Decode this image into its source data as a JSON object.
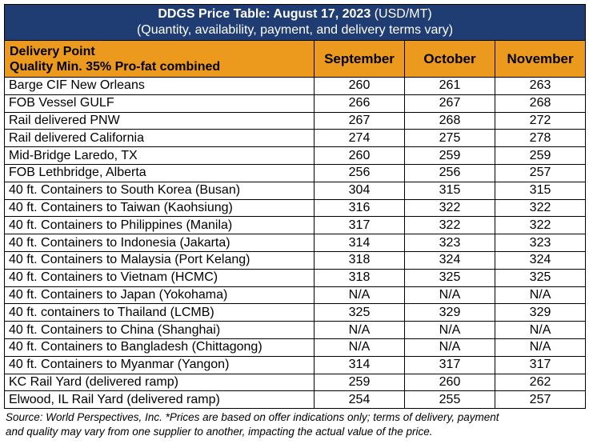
{
  "title": {
    "bold": "DDGS Price Table: August 17, 2023",
    "unit": "(USD/MT)",
    "subtitle": "(Quantity, availability, payment, and delivery terms vary)"
  },
  "header": {
    "point_line1": "Delivery Point",
    "point_line2": "Quality Min. 35% Pro-fat combined",
    "months": [
      "September",
      "October",
      "November"
    ]
  },
  "rows": [
    {
      "point": "Barge CIF New Orleans",
      "sep": "260",
      "oct": "261",
      "nov": "263"
    },
    {
      "point": "FOB Vessel GULF",
      "sep": "266",
      "oct": "267",
      "nov": "268"
    },
    {
      "point": "Rail delivered PNW",
      "sep": "267",
      "oct": "268",
      "nov": "272"
    },
    {
      "point": "Rail delivered California",
      "sep": "274",
      "oct": "275",
      "nov": "278"
    },
    {
      "point": "Mid-Bridge Laredo, TX",
      "sep": "260",
      "oct": "259",
      "nov": "259"
    },
    {
      "point": "FOB Lethbridge, Alberta",
      "sep": "256",
      "oct": "256",
      "nov": "257"
    },
    {
      "point": "40 ft. Containers to South Korea (Busan)",
      "sep": "304",
      "oct": "315",
      "nov": "315"
    },
    {
      "point": "40 ft. Containers to Taiwan (Kaohsiung)",
      "sep": "316",
      "oct": "322",
      "nov": "322"
    },
    {
      "point": "40 ft. Containers to Philippines (Manila)",
      "sep": "317",
      "oct": "322",
      "nov": "322"
    },
    {
      "point": "40 ft. Containers to Indonesia (Jakarta)",
      "sep": "314",
      "oct": "323",
      "nov": "323"
    },
    {
      "point": "40 ft. Containers to Malaysia (Port Kelang)",
      "sep": "318",
      "oct": "324",
      "nov": "324"
    },
    {
      "point": "40 ft. Containers to Vietnam (HCMC)",
      "sep": "318",
      "oct": "325",
      "nov": "325"
    },
    {
      "point": "40 ft. Containers to Japan (Yokohama)",
      "sep": "N/A",
      "oct": "N/A",
      "nov": "N/A"
    },
    {
      "point": "40 ft. containers to Thailand (LCMB)",
      "sep": "325",
      "oct": "329",
      "nov": "329"
    },
    {
      "point": "40 ft. Containers to China (Shanghai)",
      "sep": "N/A",
      "oct": "N/A",
      "nov": "N/A"
    },
    {
      "point": "40 ft. Containers to Bangladesh (Chittagong)",
      "sep": "N/A",
      "oct": "N/A",
      "nov": "N/A"
    },
    {
      "point": "40 ft. Containers to Myanmar (Yangon)",
      "sep": "314",
      "oct": "317",
      "nov": "317"
    },
    {
      "point": "KC Rail Yard (delivered ramp)",
      "sep": "259",
      "oct": "260",
      "nov": "262"
    },
    {
      "point": "Elwood, IL Rail Yard (delivered ramp)",
      "sep": "254",
      "oct": "255",
      "nov": "257"
    }
  ],
  "source": {
    "line1": "Source: World Perspectives, Inc. *Prices are based on offer indications only; terms of delivery, payment",
    "line2": "and quality may vary from one supplier to another, impacting the actual value of the price."
  },
  "colors": {
    "title_bg": "#1f3c73",
    "header_bg": "#ec9a1e",
    "title_text": "#ffffff",
    "body_text": "#000000"
  }
}
